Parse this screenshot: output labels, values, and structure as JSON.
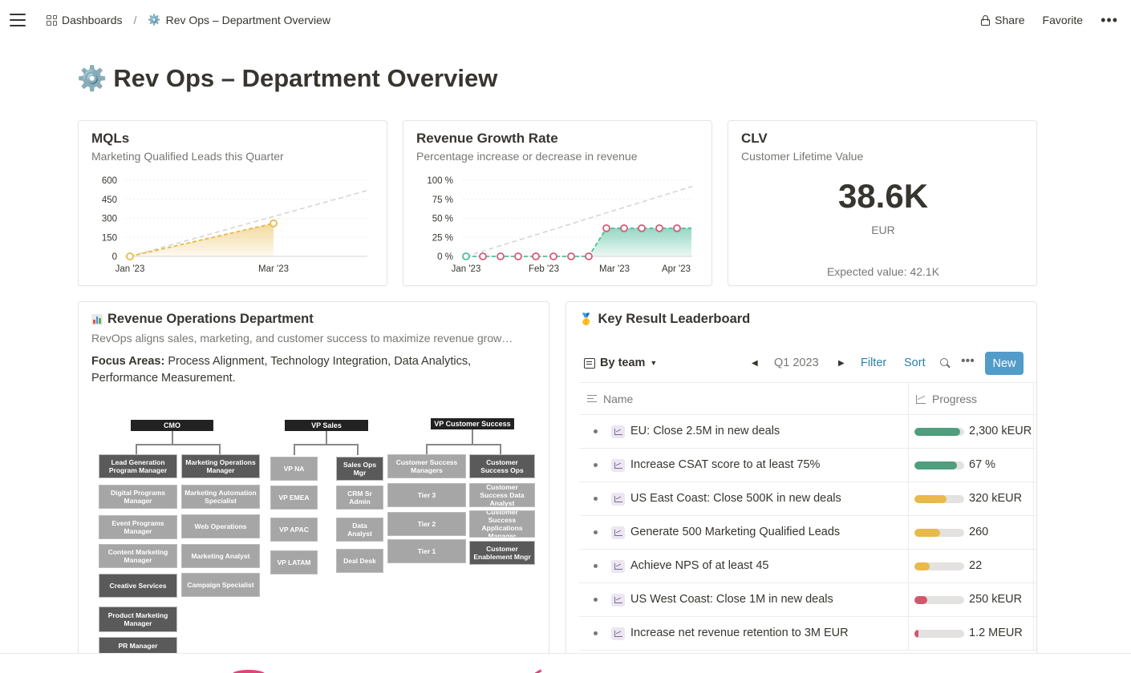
{
  "topbar": {
    "breadcrumb_root": "Dashboards",
    "breadcrumb_sep": "/",
    "breadcrumb_page": "Rev Ops – Department Overview",
    "page_emoji": "⚙️",
    "share_label": "Share",
    "favorite_label": "Favorite",
    "more_label": "•••"
  },
  "page": {
    "emoji": "⚙️",
    "title": "Rev Ops – Department Overview"
  },
  "cards": {
    "mql": {
      "title": "MQLs",
      "subtitle": "Marketing Qualified Leads this Quarter"
    },
    "revenue": {
      "title": "Revenue Growth Rate",
      "subtitle": "Percentage increase or decrease in revenue"
    },
    "clv": {
      "title": "CLV",
      "subtitle": "Customer Lifetime Value",
      "value": "38.6K",
      "unit": "EUR",
      "expected": "Expected value: 42.1K"
    }
  },
  "chart_data": [
    {
      "type": "area",
      "y_ticks": [
        "600",
        "450",
        "300",
        "150",
        "0"
      ],
      "ylim": [
        0,
        600
      ],
      "x_ticks": [
        "Jan '23",
        "Mar '23"
      ],
      "series": [
        {
          "points": [
            {
              "x": "Jan '23",
              "y": 0
            },
            {
              "x": "Mar '23",
              "y": 260
            }
          ]
        }
      ],
      "target_line": {
        "from": 0,
        "to": 520
      },
      "grid": true,
      "color": "#e9b949"
    },
    {
      "type": "area",
      "y_ticks": [
        "100 %",
        "75 %",
        "50 %",
        "25 %",
        "0 %"
      ],
      "ylim": [
        0,
        100
      ],
      "x_ticks": [
        "Jan '23",
        "Feb '23",
        "Mar '23",
        "Apr '23"
      ],
      "series": [
        {
          "values": [
            0,
            0,
            0,
            0,
            0,
            0,
            0,
            0,
            37,
            37,
            37,
            37,
            37,
            37
          ]
        }
      ],
      "target_line": {
        "from": 0,
        "to": 92
      },
      "grid": true,
      "color": "#4dbd9a",
      "marker_color": "#d65a78"
    }
  ],
  "dept": {
    "emoji_label": "bar-chart-icon",
    "title": "Revenue Operations Department",
    "description": "RevOps aligns sales, marketing, and customer success to maximize revenue grow…",
    "focus_label": "Focus Areas:",
    "focus_text": " Process Alignment, Technology Integration, Data Analytics, Performance Measurement.",
    "org": {
      "cmo": {
        "head": "CMO",
        "left": [
          "Lead Generation Program Manager",
          "Digital Programs Manager",
          "Event Programs Manager",
          "Content Marketing Manager",
          "Creative Services",
          "Product Marketing Manager",
          "PR Manager"
        ],
        "right": [
          "Marketing Operations Manager",
          "Marketing Automation Specialist",
          "Web Operations",
          "Marketing Analyst",
          "Campaign Specialist"
        ]
      },
      "sales": {
        "head": "VP Sales",
        "left": [
          "VP NA",
          "VP EMEA",
          "VP APAC",
          "VP LATAM"
        ],
        "right": [
          "Sales Ops Mgr",
          "CRM Sr Admin",
          "Data Analyst",
          "Deal Desk"
        ]
      },
      "cs": {
        "head": "VP Customer Success",
        "left": [
          "Customer Success Managers",
          "Tier 3",
          "Tier 2",
          "Tier 1"
        ],
        "right": [
          "Customer Success Ops",
          "Customer Success Data Analyst",
          "Customer Success Applications Manager",
          "Customer Enablement Mngr"
        ]
      }
    }
  },
  "leaderboard": {
    "title": "Key Result Leaderboard",
    "view_label": "By team",
    "period": "Q1 2023",
    "filter_label": "Filter",
    "sort_label": "Sort",
    "more_label": "•••",
    "new_label": "New",
    "col_name": "Name",
    "col_progress": "Progress",
    "rows": [
      {
        "name": "EU: Close 2.5M in new deals",
        "value": "2,300 kEUR",
        "progress": 0.92,
        "color": "#4f9e7e"
      },
      {
        "name": "Increase CSAT score to at least 75%",
        "value": "67 %",
        "progress": 0.85,
        "color": "#4f9e7e"
      },
      {
        "name": "US East Coast: Close 500K in new deals",
        "value": "320 kEUR",
        "progress": 0.64,
        "color": "#e9b949"
      },
      {
        "name": "Generate 500 Marketing Qualified Leads",
        "value": "260",
        "progress": 0.52,
        "color": "#e9b949"
      },
      {
        "name": "Achieve NPS of at least 45",
        "value": "22",
        "progress": 0.3,
        "color": "#e9b949"
      },
      {
        "name": "US West Coast: Close 1M in new deals",
        "value": "250 kEUR",
        "progress": 0.25,
        "color": "#d4566a"
      },
      {
        "name": "Increase net revenue retention to 3M EUR",
        "value": "1.2 MEUR",
        "progress": 0.08,
        "color": "#d4566a"
      }
    ]
  }
}
